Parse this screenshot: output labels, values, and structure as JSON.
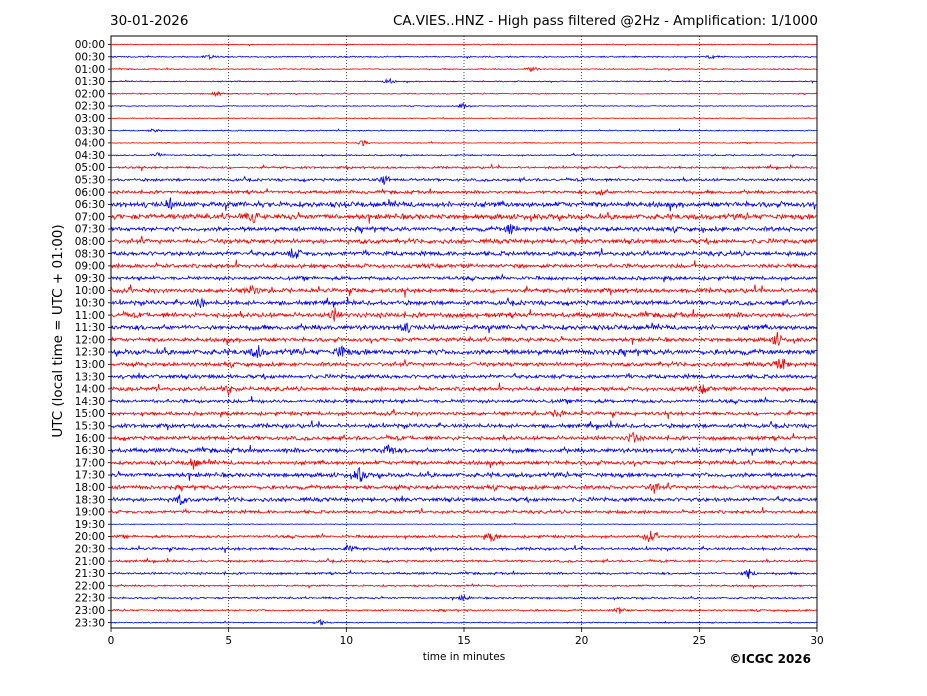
{
  "header": {
    "date": "30-01-2026",
    "title": "CA.VIES..HNZ - High pass filtered @2Hz - Amplification: 1/1000"
  },
  "footer": {
    "copyright": "©ICGC 2026"
  },
  "chart_data": {
    "type": "line",
    "title": "CA.VIES..HNZ - High pass filtered @2Hz - Amplification: 1/1000",
    "xlabel": "time in minutes",
    "ylabel": "UTC (local time = UTC + 01:00)",
    "xlim": [
      0,
      30
    ],
    "xticks": [
      "0",
      "5",
      "10",
      "15",
      "20",
      "25",
      "30"
    ],
    "vertical_gridlines_at": [
      5,
      10,
      15,
      20,
      25
    ],
    "colors": {
      "odd_row": "#0000ff",
      "even_row": "#ff0000"
    },
    "row_labels": [
      "00:00",
      "00:30",
      "01:00",
      "01:30",
      "02:00",
      "02:30",
      "03:00",
      "03:30",
      "04:00",
      "04:30",
      "05:00",
      "05:30",
      "06:00",
      "06:30",
      "07:00",
      "07:30",
      "08:00",
      "08:30",
      "09:00",
      "09:30",
      "10:00",
      "10:30",
      "11:00",
      "11:30",
      "12:00",
      "12:30",
      "13:00",
      "13:30",
      "14:00",
      "14:30",
      "15:00",
      "15:30",
      "16:00",
      "16:30",
      "17:00",
      "17:30",
      "18:00",
      "18:30",
      "19:00",
      "19:30",
      "20:00",
      "20:30",
      "21:00",
      "21:30",
      "22:00",
      "22:30",
      "23:00",
      "23:30"
    ],
    "noise_level": [
      0.4,
      0.6,
      0.5,
      0.5,
      0.5,
      0.4,
      0.4,
      0.5,
      0.4,
      0.6,
      1.0,
      1.2,
      1.4,
      2.4,
      2.4,
      2.0,
      2.0,
      2.0,
      1.8,
      1.6,
      2.0,
      2.0,
      2.2,
      2.2,
      1.8,
      2.4,
      1.8,
      1.8,
      1.8,
      1.6,
      1.6,
      1.8,
      1.8,
      2.0,
      1.8,
      2.0,
      1.8,
      1.8,
      1.4,
      0.3,
      1.2,
      1.2,
      1.0,
      1.0,
      0.8,
      0.8,
      0.8,
      0.5
    ],
    "events": [
      {
        "row": 1,
        "minute": 4.2,
        "amp": 2
      },
      {
        "row": 1,
        "minute": 25.5,
        "amp": 2
      },
      {
        "row": 2,
        "minute": 17.9,
        "amp": 3
      },
      {
        "row": 3,
        "minute": 11.8,
        "amp": 3
      },
      {
        "row": 4,
        "minute": 4.5,
        "amp": 3
      },
      {
        "row": 5,
        "minute": 15.0,
        "amp": 4
      },
      {
        "row": 7,
        "minute": 1.8,
        "amp": 2
      },
      {
        "row": 8,
        "minute": 10.7,
        "amp": 3
      },
      {
        "row": 9,
        "minute": 2.0,
        "amp": 3
      },
      {
        "row": 11,
        "minute": 11.6,
        "amp": 5
      },
      {
        "row": 12,
        "minute": 20.8,
        "amp": 4
      },
      {
        "row": 13,
        "minute": 2.5,
        "amp": 5
      },
      {
        "row": 14,
        "minute": 6.0,
        "amp": 6
      },
      {
        "row": 15,
        "minute": 17.0,
        "amp": 6
      },
      {
        "row": 17,
        "minute": 7.8,
        "amp": 6
      },
      {
        "row": 20,
        "minute": 6.0,
        "amp": 5
      },
      {
        "row": 21,
        "minute": 3.8,
        "amp": 5
      },
      {
        "row": 22,
        "minute": 9.5,
        "amp": 6
      },
      {
        "row": 23,
        "minute": 12.5,
        "amp": 6
      },
      {
        "row": 24,
        "minute": 28.3,
        "amp": 7
      },
      {
        "row": 25,
        "minute": 6.2,
        "amp": 7
      },
      {
        "row": 25,
        "minute": 9.8,
        "amp": 7
      },
      {
        "row": 26,
        "minute": 28.5,
        "amp": 8
      },
      {
        "row": 28,
        "minute": 5.0,
        "amp": 6
      },
      {
        "row": 28,
        "minute": 25.2,
        "amp": 5
      },
      {
        "row": 30,
        "minute": 19.0,
        "amp": 5
      },
      {
        "row": 32,
        "minute": 22.2,
        "amp": 6
      },
      {
        "row": 33,
        "minute": 11.8,
        "amp": 7
      },
      {
        "row": 34,
        "minute": 3.5,
        "amp": 6
      },
      {
        "row": 35,
        "minute": 10.6,
        "amp": 8
      },
      {
        "row": 36,
        "minute": 23.1,
        "amp": 6
      },
      {
        "row": 37,
        "minute": 2.9,
        "amp": 5
      },
      {
        "row": 40,
        "minute": 22.9,
        "amp": 6
      },
      {
        "row": 40,
        "minute": 16.2,
        "amp": 5
      },
      {
        "row": 41,
        "minute": 10.2,
        "amp": 4
      },
      {
        "row": 43,
        "minute": 27.1,
        "amp": 6
      },
      {
        "row": 45,
        "minute": 15.0,
        "amp": 3
      },
      {
        "row": 46,
        "minute": 21.6,
        "amp": 4
      },
      {
        "row": 47,
        "minute": 8.9,
        "amp": 3
      }
    ]
  }
}
